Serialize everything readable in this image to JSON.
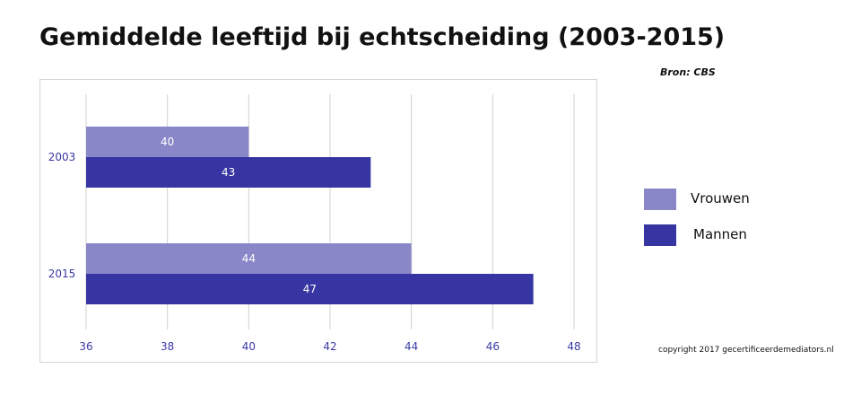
{
  "title": "Gemiddelde leeftijd bij echtscheiding (2003-2015)",
  "source": "Bron: CBS",
  "copyright": "copyright 2017 gecertificeerdemediators.nl",
  "colors": {
    "vrouwen": "#8a87c8",
    "mannen": "#3735a1",
    "tick_text": "#3a3aa6",
    "grid": "#d0d0d0"
  },
  "chart_data": {
    "type": "bar",
    "orientation": "horizontal",
    "categories": [
      "2003",
      "2015"
    ],
    "series": [
      {
        "name": "Vrouwen",
        "values": [
          40,
          44
        ]
      },
      {
        "name": "Mannen",
        "values": [
          43,
          47
        ]
      }
    ],
    "xlim": [
      36,
      48
    ],
    "xticks": [
      36,
      38,
      40,
      42,
      44,
      46,
      48
    ],
    "data_labels": true,
    "grid": true,
    "legend": "right"
  }
}
